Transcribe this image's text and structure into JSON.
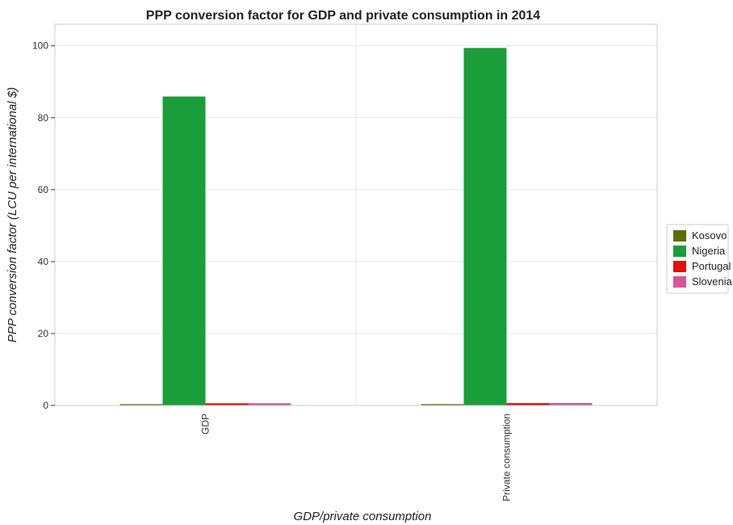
{
  "chart_data": {
    "type": "bar",
    "title": "PPP conversion factor for GDP and private consumption in 2014",
    "xlabel": "GDP/private consumption",
    "ylabel": "PPP conversion factor (LCU per international $)",
    "categories": [
      "GDP",
      " Private consumption"
    ],
    "ylim": [
      0,
      106
    ],
    "yticks": [
      0,
      20,
      40,
      60,
      80,
      100
    ],
    "grid": true,
    "legend_position": "right",
    "series": [
      {
        "name": "Kosovo",
        "color": "#5a6e0a",
        "values": [
          0.36,
          0.37
        ]
      },
      {
        "name": "Nigeria",
        "color": "#1a9e3a",
        "values": [
          85.9,
          99.4
        ]
      },
      {
        "name": "Portugal",
        "color": "#e01010",
        "values": [
          0.61,
          0.65
        ]
      },
      {
        "name": "Slovenia",
        "color": "#d8559a",
        "values": [
          0.62,
          0.68
        ]
      }
    ]
  }
}
